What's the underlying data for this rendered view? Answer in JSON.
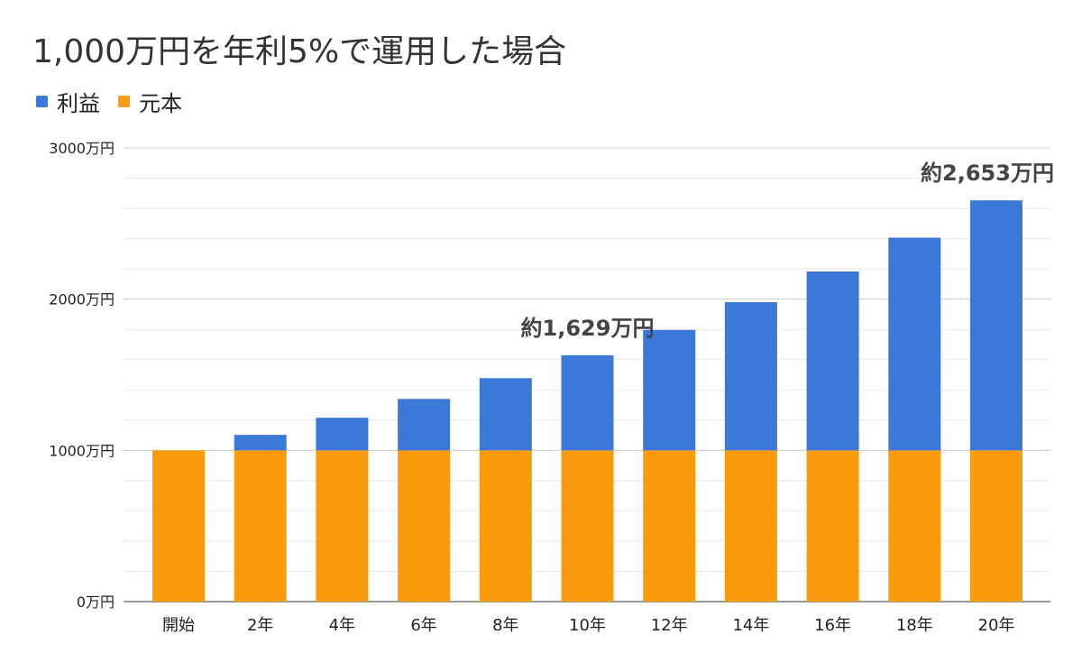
{
  "chart_data": {
    "type": "bar",
    "stacked": true,
    "title": "1,000万円を年利5%で運用した場合",
    "categories": [
      "開始",
      "2年",
      "4年",
      "6年",
      "8年",
      "10年",
      "12年",
      "14年",
      "16年",
      "18年",
      "20年"
    ],
    "series": [
      {
        "name": "利益",
        "color": "#3c78d8",
        "values": [
          0,
          102.5,
          215.5,
          340.1,
          477.5,
          628.9,
          795.9,
          979.9,
          1182.9,
          1406.6,
          1653.3
        ]
      },
      {
        "name": "元本",
        "color": "#f99b0c",
        "values": [
          1000,
          1000,
          1000,
          1000,
          1000,
          1000,
          1000,
          1000,
          1000,
          1000,
          1000
        ]
      }
    ],
    "ylim": [
      0,
      3000
    ],
    "yticks": [
      0,
      1000,
      2000,
      3000
    ],
    "ytick_labels": [
      "0万円",
      "1000万円",
      "2000万円",
      "3000万円"
    ],
    "minor_grid_step": 200,
    "grid": true,
    "legend_position": "top-left",
    "annotations": [
      {
        "category": "10年",
        "text": "約1,629万円"
      },
      {
        "category": "20年",
        "text": "約2,653万円"
      }
    ],
    "xlabel": "",
    "ylabel": ""
  }
}
